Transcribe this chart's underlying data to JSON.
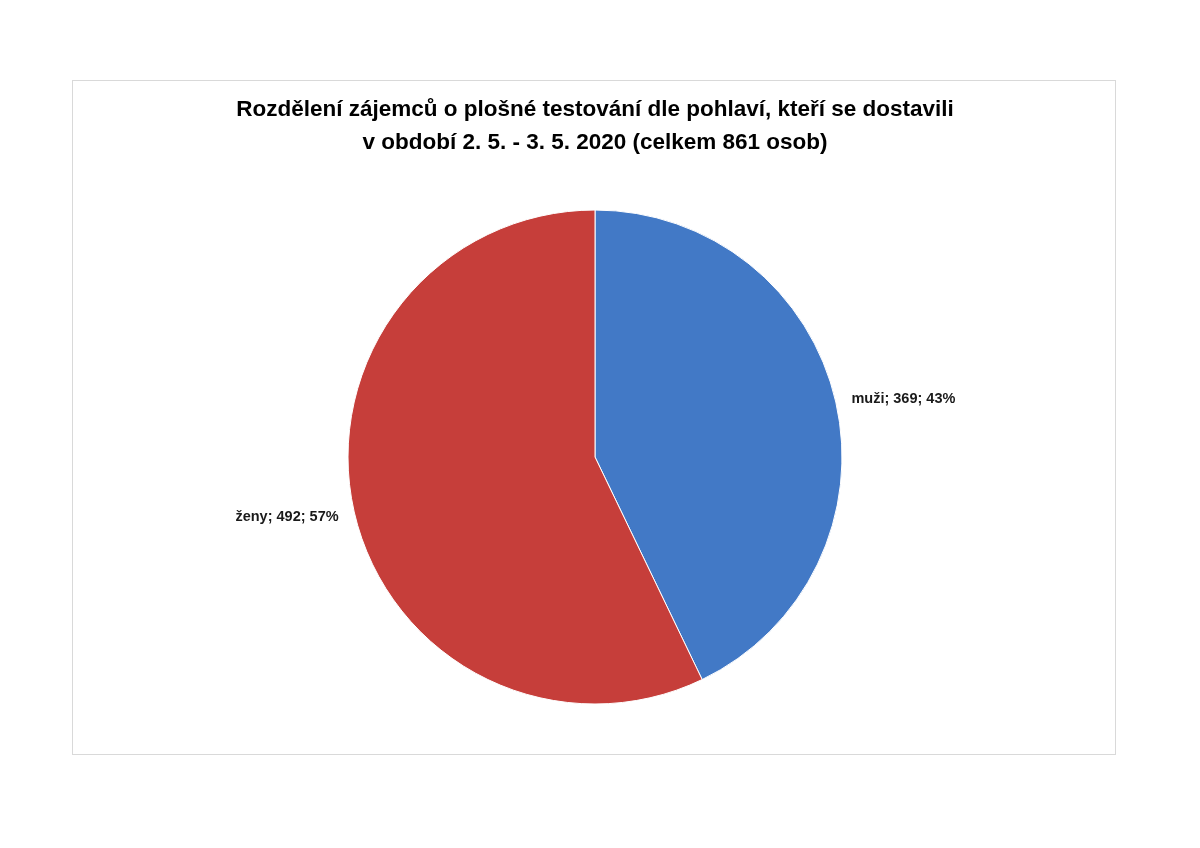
{
  "chart_data": {
    "type": "pie",
    "title": "Rozdělení zájemců o plošné testování dle pohlaví, kteří se dostavili\nv období 2. 5. - 3. 5. 2020 (celkem 861 osob)",
    "categories": [
      "muži",
      "ženy"
    ],
    "values": [
      369,
      492
    ],
    "colors": [
      "#4279c6",
      "#c63e3a"
    ],
    "value_labels": [
      "; 369; 43%",
      "; 492; 57%"
    ]
  }
}
